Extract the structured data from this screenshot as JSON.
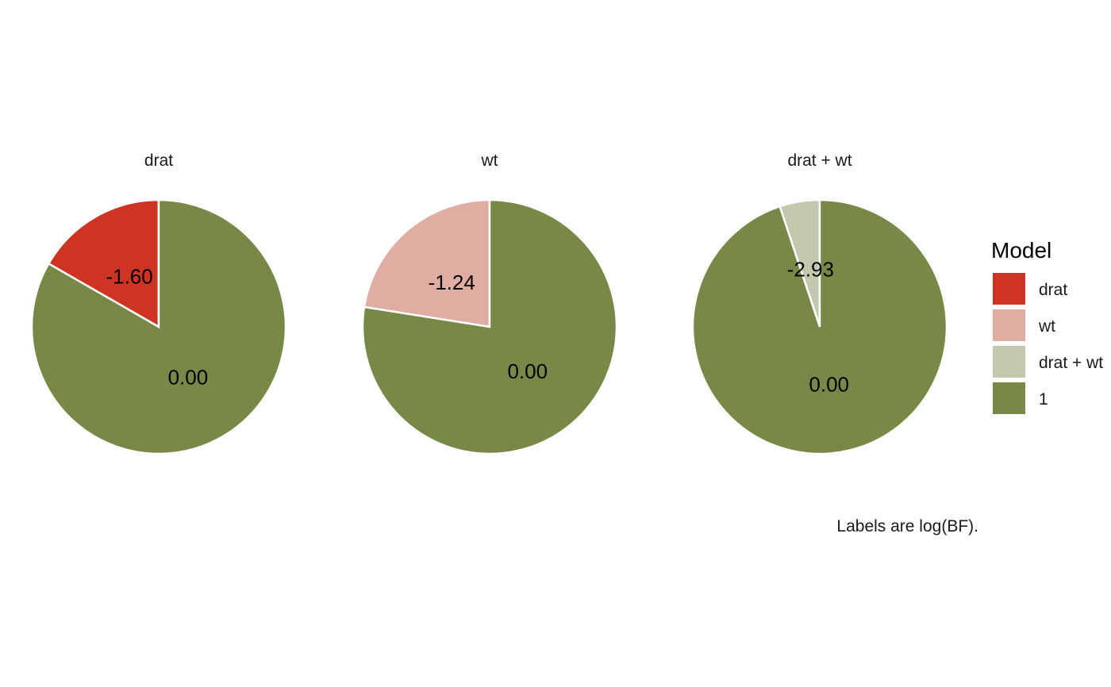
{
  "chart_data": {
    "type": "pie",
    "facets": [
      {
        "title": "drat",
        "slices": [
          {
            "model": "drat",
            "share": 0.167,
            "label": "-1.60"
          },
          {
            "model": "1",
            "share": 0.833,
            "label": "0.00"
          }
        ]
      },
      {
        "title": "wt",
        "slices": [
          {
            "model": "wt",
            "share": 0.225,
            "label": "-1.24"
          },
          {
            "model": "1",
            "share": 0.775,
            "label": "0.00"
          }
        ]
      },
      {
        "title": "drat + wt",
        "slices": [
          {
            "model": "drat + wt",
            "share": 0.051,
            "label": "-2.93"
          },
          {
            "model": "1",
            "share": 0.949,
            "label": "0.00"
          }
        ]
      }
    ],
    "legend": {
      "title": "Model",
      "placement": "right",
      "items": [
        {
          "label": "drat",
          "color": "#cd3522"
        },
        {
          "label": "wt",
          "color": "#e0ada2"
        },
        {
          "label": "drat + wt",
          "color": "#c5c8ae"
        },
        {
          "label": "1",
          "color": "#788947"
        }
      ]
    },
    "caption": "Labels are log(BF)."
  }
}
